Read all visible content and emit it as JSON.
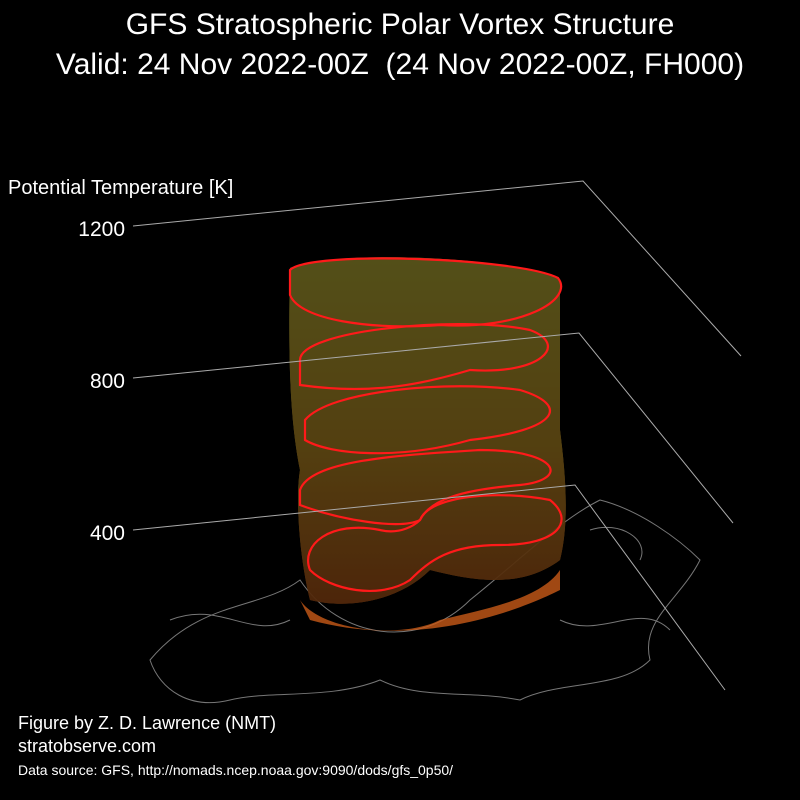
{
  "chart_data": {
    "type": "vortex3d",
    "title": "GFS Stratospheric Polar Vortex Structure",
    "subtitle": "Valid: 24 Nov 2022-00Z  (24 Nov 2022-00Z, FH000)",
    "y_label": "Potential Temperature [K]",
    "ylim": [
      400,
      1200
    ],
    "yticks": [
      400,
      800,
      1200
    ],
    "credit": "Figure by Z. D. Lawrence (NMT)",
    "website": "stratobserve.com",
    "source": "Data source: GFS, http://nomads.ncep.noaa.gov:9090/dods/gfs_0p50/"
  }
}
